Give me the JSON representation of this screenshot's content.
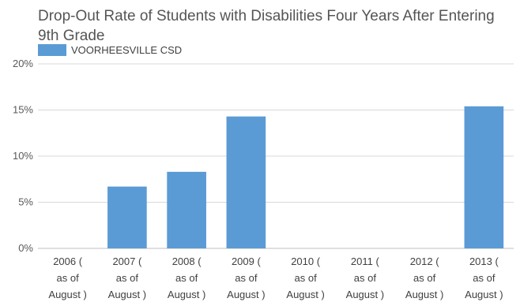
{
  "chart_data": {
    "type": "bar",
    "title": "Drop-Out Rate of Students with Disabilities Four Years After Entering 9th Grade",
    "categories": [
      [
        "2006 (",
        "as of",
        "August )"
      ],
      [
        "2007 (",
        "as of",
        "August )"
      ],
      [
        "2008 (",
        "as of",
        "August )"
      ],
      [
        "2009 (",
        "as of",
        "August )"
      ],
      [
        "2010 (",
        "as of",
        "August )"
      ],
      [
        "2011 (",
        "as of",
        "August )"
      ],
      [
        "2012 (",
        "as of",
        "August )"
      ],
      [
        "2013 (",
        "as of",
        "August )"
      ]
    ],
    "series": [
      {
        "name": "VOORHEESVILLE CSD",
        "color": "#5b9bd5",
        "values": [
          0,
          6.7,
          8.3,
          14.3,
          0,
          0,
          0,
          15.4
        ]
      }
    ],
    "ylim": [
      0,
      20
    ],
    "yticks": [
      0,
      5,
      10,
      15,
      20
    ],
    "ytick_labels": [
      "0%",
      "5%",
      "10%",
      "15%",
      "20%"
    ],
    "grid": true,
    "legend_position": "top-left"
  }
}
